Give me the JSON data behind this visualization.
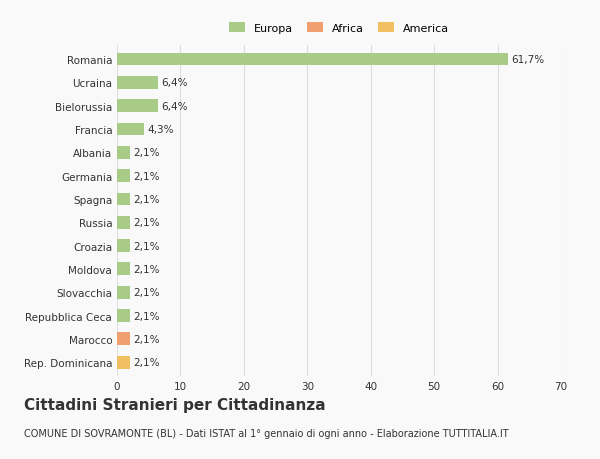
{
  "categories": [
    "Rep. Dominicana",
    "Marocco",
    "Repubblica Ceca",
    "Slovacchia",
    "Moldova",
    "Croazia",
    "Russia",
    "Spagna",
    "Germania",
    "Albania",
    "Francia",
    "Bielorussia",
    "Ucraina",
    "Romania"
  ],
  "values": [
    2.1,
    2.1,
    2.1,
    2.1,
    2.1,
    2.1,
    2.1,
    2.1,
    2.1,
    2.1,
    4.3,
    6.4,
    6.4,
    61.7
  ],
  "labels": [
    "2,1%",
    "2,1%",
    "2,1%",
    "2,1%",
    "2,1%",
    "2,1%",
    "2,1%",
    "2,1%",
    "2,1%",
    "2,1%",
    "4,3%",
    "6,4%",
    "6,4%",
    "61,7%"
  ],
  "colors": [
    "#f0c060",
    "#f0a070",
    "#a8cc88",
    "#a8cc88",
    "#a8cc88",
    "#a8cc88",
    "#a8cc88",
    "#a8cc88",
    "#a8cc88",
    "#a8cc88",
    "#a8cc88",
    "#a8cc88",
    "#a8cc88",
    "#a8cc88"
  ],
  "legend": [
    {
      "label": "Europa",
      "color": "#a8cc88"
    },
    {
      "label": "Africa",
      "color": "#f0a070"
    },
    {
      "label": "America",
      "color": "#f0c060"
    }
  ],
  "title": "Cittadini Stranieri per Cittadinanza",
  "subtitle": "COMUNE DI SOVRAMONTE (BL) - Dati ISTAT al 1° gennaio di ogni anno - Elaborazione TUTTITALIA.IT",
  "xlim": [
    0,
    70
  ],
  "xticks": [
    0,
    10,
    20,
    30,
    40,
    50,
    60,
    70
  ],
  "background_color": "#f9f9f9",
  "bar_height": 0.55,
  "grid_color": "#dddddd",
  "text_color": "#333333",
  "label_fontsize": 7.5,
  "tick_fontsize": 7.5,
  "title_fontsize": 11,
  "subtitle_fontsize": 7.0
}
